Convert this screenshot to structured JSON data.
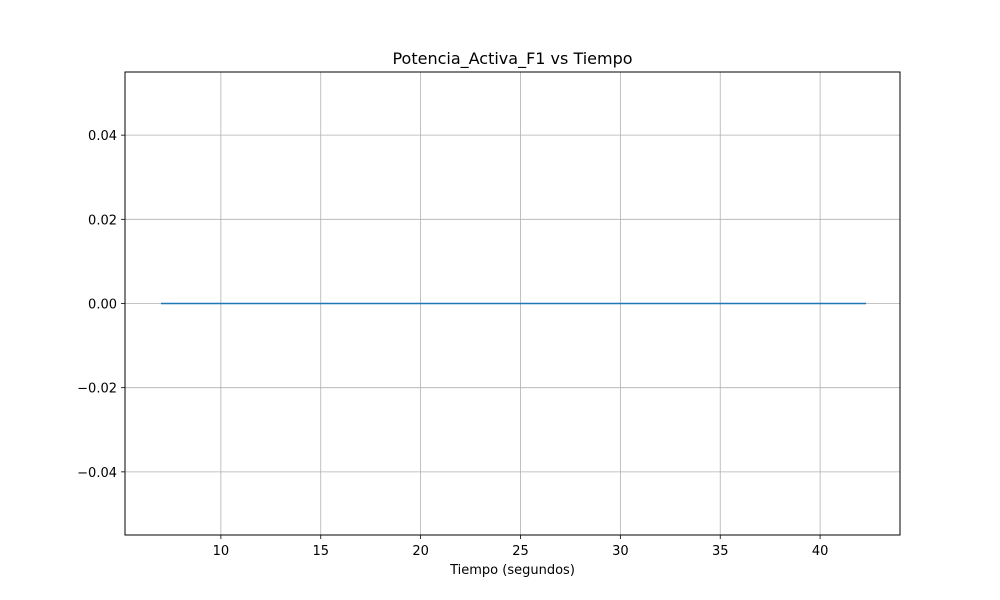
{
  "chart_data": {
    "type": "line",
    "title": "Potencia_Activa_F1 vs Tiempo",
    "xlabel": "Tiempo (segundos)",
    "ylabel": "",
    "xlim": [
      5.2,
      44.0
    ],
    "ylim": [
      -0.055,
      0.055
    ],
    "xticks": [
      10,
      15,
      20,
      25,
      30,
      35,
      40
    ],
    "xtick_labels": [
      "10",
      "15",
      "20",
      "25",
      "30",
      "35",
      "40"
    ],
    "yticks": [
      -0.04,
      -0.02,
      0.0,
      0.02,
      0.04
    ],
    "ytick_labels": [
      "−0.04",
      "−0.02",
      "0.00",
      "0.02",
      "0.04"
    ],
    "grid": true,
    "series": [
      {
        "x": [
          7.0,
          42.3
        ],
        "y": [
          0.0,
          0.0
        ],
        "color": "#1f77b4"
      }
    ]
  }
}
